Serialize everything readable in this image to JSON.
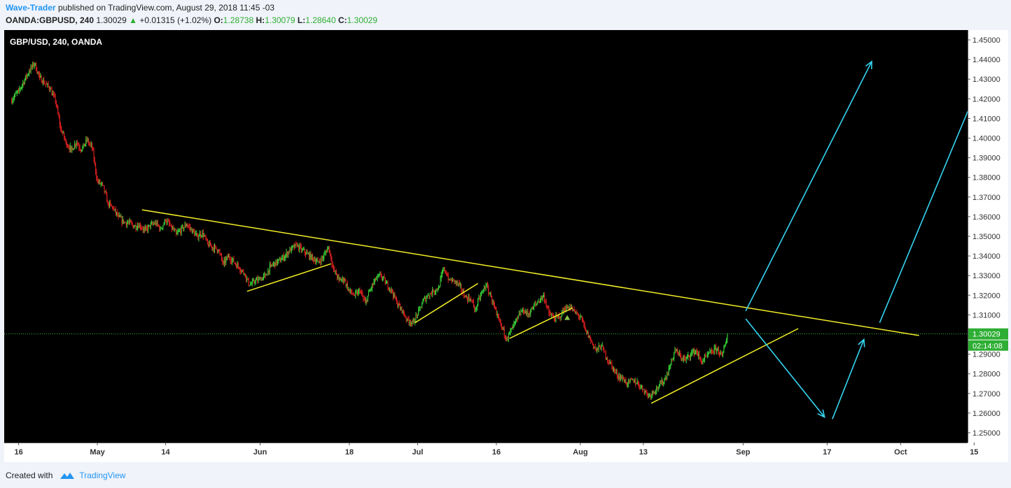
{
  "header": {
    "author": "Wave-Trader",
    "published": "published on TradingView.com, August 29, 2018 11:45 -03",
    "symbol": "OANDA:GBPUSD, 240",
    "last": "1.30029",
    "change": "+0.01315 (+1.02%)",
    "o_label": "O:",
    "o_value": "1.28738",
    "h_label": "H:",
    "h_value": "1.30079",
    "l_label": "L:",
    "l_value": "1.28640",
    "c_label": "C:",
    "c_value": "1.30029"
  },
  "footer": {
    "created_with": "Created with",
    "brand": "TradingView"
  },
  "colors": {
    "background": "#000000",
    "up": "#39d639",
    "down": "#e02020",
    "trendline": "#f2ee26",
    "projection": "#35d4f0",
    "price_line": "#3fbf3f"
  },
  "chart_data": {
    "type": "candlestick",
    "title": "GBP/USD, 240, OANDA",
    "ylim": [
      1.245,
      1.455
    ],
    "y_ticks": [
      "1.25000",
      "1.26000",
      "1.27000",
      "1.28000",
      "1.29000",
      "1.30000",
      "1.31000",
      "1.32000",
      "1.33000",
      "1.34000",
      "1.35000",
      "1.36000",
      "1.37000",
      "1.38000",
      "1.39000",
      "1.40000",
      "1.41000",
      "1.42000",
      "1.43000",
      "1.44000",
      "1.45000"
    ],
    "x_ticks": [
      {
        "label": "16",
        "day": 0
      },
      {
        "label": "May",
        "day": 15
      },
      {
        "label": "14",
        "day": 28
      },
      {
        "label": "Jun",
        "day": 46
      },
      {
        "label": "18",
        "day": 63
      },
      {
        "label": "Jul",
        "day": 76
      },
      {
        "label": "16",
        "day": 91
      },
      {
        "label": "Aug",
        "day": 107
      },
      {
        "label": "13",
        "day": 119
      },
      {
        "label": "Sep",
        "day": 138
      },
      {
        "label": "17",
        "day": 154
      },
      {
        "label": "Oct",
        "day": 168
      },
      {
        "label": "15",
        "day": 182
      }
    ],
    "path": [
      [
        -1.5,
        1.419
      ],
      [
        0,
        1.424
      ],
      [
        2,
        1.434
      ],
      [
        3,
        1.438
      ],
      [
        4,
        1.431
      ],
      [
        6,
        1.425
      ],
      [
        7,
        1.419
      ],
      [
        8,
        1.405
      ],
      [
        9,
        1.398
      ],
      [
        10,
        1.394
      ],
      [
        11,
        1.398
      ],
      [
        12,
        1.394
      ],
      [
        13,
        1.399
      ],
      [
        14,
        1.395
      ],
      [
        15,
        1.378
      ],
      [
        16,
        1.376
      ],
      [
        17,
        1.367
      ],
      [
        18,
        1.364
      ],
      [
        19,
        1.36
      ],
      [
        20,
        1.357
      ],
      [
        21,
        1.357
      ],
      [
        22,
        1.355
      ],
      [
        23,
        1.356
      ],
      [
        24,
        1.353
      ],
      [
        25,
        1.355
      ],
      [
        26,
        1.357
      ],
      [
        27,
        1.354
      ],
      [
        28,
        1.358
      ],
      [
        29,
        1.355
      ],
      [
        30,
        1.351
      ],
      [
        32,
        1.356
      ],
      [
        34,
        1.35
      ],
      [
        35,
        1.352
      ],
      [
        36,
        1.346
      ],
      [
        38,
        1.343
      ],
      [
        39,
        1.336
      ],
      [
        40,
        1.34
      ],
      [
        42,
        1.334
      ],
      [
        43,
        1.331
      ],
      [
        44,
        1.325
      ],
      [
        45,
        1.327
      ],
      [
        46,
        1.328
      ],
      [
        47,
        1.33
      ],
      [
        48,
        1.335
      ],
      [
        50,
        1.338
      ],
      [
        52,
        1.344
      ],
      [
        53,
        1.345
      ],
      [
        54,
        1.343
      ],
      [
        55,
        1.341
      ],
      [
        56,
        1.339
      ],
      [
        57,
        1.337
      ],
      [
        58,
        1.339
      ],
      [
        59,
        1.345
      ],
      [
        60,
        1.333
      ],
      [
        61,
        1.328
      ],
      [
        62,
        1.328
      ],
      [
        63,
        1.322
      ],
      [
        64,
        1.32
      ],
      [
        65,
        1.322
      ],
      [
        66,
        1.316
      ],
      [
        67,
        1.323
      ],
      [
        68,
        1.328
      ],
      [
        69,
        1.33
      ],
      [
        70,
        1.326
      ],
      [
        71,
        1.323
      ],
      [
        72,
        1.316
      ],
      [
        73,
        1.312
      ],
      [
        74,
        1.308
      ],
      [
        75,
        1.306
      ],
      [
        76,
        1.31
      ],
      [
        77,
        1.317
      ],
      [
        78,
        1.32
      ],
      [
        79,
        1.322
      ],
      [
        80,
        1.324
      ],
      [
        81,
        1.334
      ],
      [
        82,
        1.328
      ],
      [
        83,
        1.327
      ],
      [
        84,
        1.325
      ],
      [
        85,
        1.319
      ],
      [
        86,
        1.318
      ],
      [
        87,
        1.313
      ],
      [
        88,
        1.32
      ],
      [
        89,
        1.325
      ],
      [
        90,
        1.319
      ],
      [
        91,
        1.31
      ],
      [
        92,
        1.304
      ],
      [
        93,
        1.298
      ],
      [
        94,
        1.303
      ],
      [
        95,
        1.308
      ],
      [
        96,
        1.313
      ],
      [
        97,
        1.31
      ],
      [
        98,
        1.314
      ],
      [
        99,
        1.317
      ],
      [
        100,
        1.32
      ],
      [
        101,
        1.311
      ],
      [
        102,
        1.308
      ],
      [
        103,
        1.309
      ],
      [
        104,
        1.313
      ],
      [
        105,
        1.314
      ],
      [
        106,
        1.311
      ],
      [
        107,
        1.309
      ],
      [
        108,
        1.302
      ],
      [
        109,
        1.297
      ],
      [
        110,
        1.292
      ],
      [
        111,
        1.294
      ],
      [
        112,
        1.288
      ],
      [
        113,
        1.284
      ],
      [
        114,
        1.279
      ],
      [
        115,
        1.278
      ],
      [
        116,
        1.275
      ],
      [
        117,
        1.277
      ],
      [
        118,
        1.275
      ],
      [
        119,
        1.272
      ],
      [
        120,
        1.269
      ],
      [
        121,
        1.271
      ],
      [
        122,
        1.274
      ],
      [
        123,
        1.277
      ],
      [
        124,
        1.283
      ],
      [
        125,
        1.292
      ],
      [
        126,
        1.289
      ],
      [
        127,
        1.287
      ],
      [
        128,
        1.29
      ],
      [
        129,
        1.292
      ],
      [
        130,
        1.286
      ],
      [
        131,
        1.289
      ],
      [
        132,
        1.291
      ],
      [
        133,
        1.293
      ],
      [
        134,
        1.289
      ],
      [
        135,
        1.3
      ]
    ],
    "trendlines": [
      {
        "name": "descending resistance",
        "points": [
          [
            23.5,
            1.3635
          ],
          [
            171.5,
            1.2995
          ]
        ]
      },
      {
        "name": "support flag 1",
        "points": [
          [
            43.5,
            1.322
          ],
          [
            59.5,
            1.336
          ]
        ]
      },
      {
        "name": "support flag 2",
        "points": [
          [
            75.5,
            1.306
          ],
          [
            87.5,
            1.326
          ]
        ]
      },
      {
        "name": "support flag 3",
        "points": [
          [
            93.5,
            1.298
          ],
          [
            105.5,
            1.3135
          ]
        ]
      },
      {
        "name": "rising support",
        "points": [
          [
            120.5,
            1.265
          ],
          [
            148.5,
            1.303
          ]
        ]
      }
    ],
    "projections": [
      {
        "name": "bull arrow A",
        "points": [
          [
            138.5,
            1.312
          ],
          [
            162.5,
            1.439
          ]
        ]
      },
      {
        "name": "bear arrow",
        "points": [
          [
            138.5,
            1.308
          ],
          [
            153.5,
            1.258
          ]
        ]
      },
      {
        "name": "recovery arrow",
        "points": [
          [
            155.0,
            1.257
          ],
          [
            161.0,
            1.2975
          ]
        ]
      },
      {
        "name": "bull arrow B",
        "points": [
          [
            164.0,
            1.306
          ],
          [
            183.5,
            1.431
          ]
        ]
      }
    ],
    "last_price": 1.30029,
    "last_price_label": "1.30029",
    "countdown_label": "02:14:08",
    "marker": {
      "day": 104.5,
      "price": 1.3085
    }
  }
}
